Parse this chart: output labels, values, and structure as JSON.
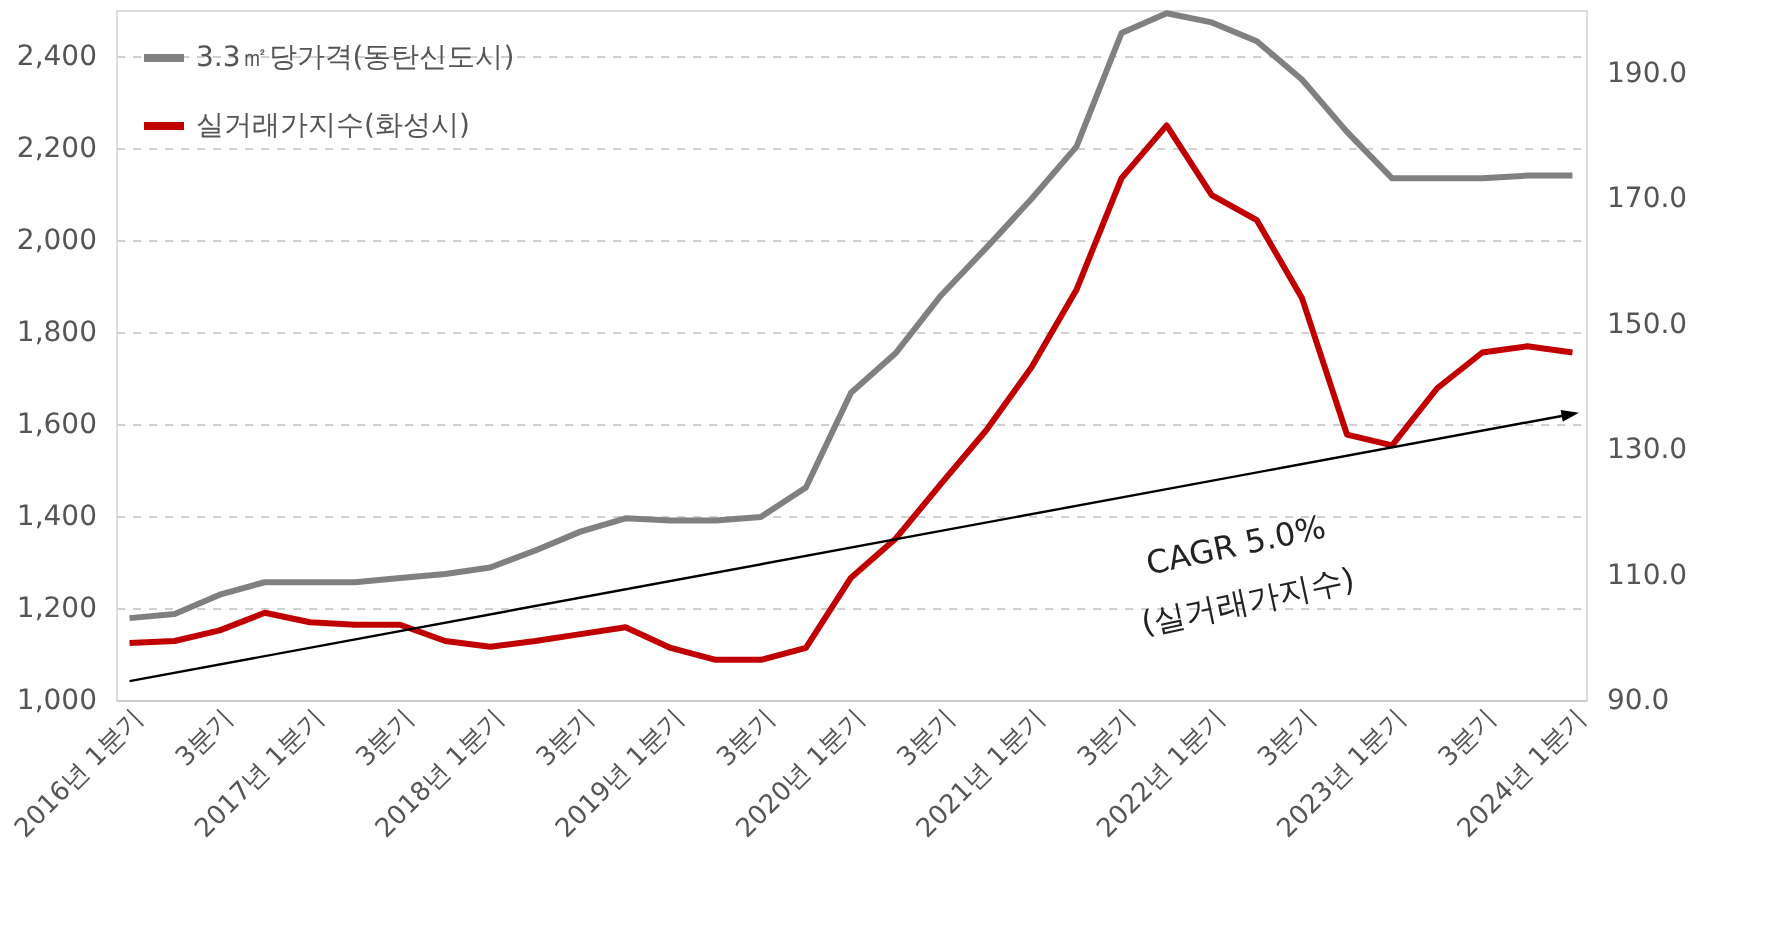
{
  "chart_data": {
    "type": "line",
    "categories": [
      "2016년 1분기",
      null,
      "3분기",
      null,
      "2017년 1분기",
      null,
      "3분기",
      null,
      "2018년 1분기",
      null,
      "3분기",
      null,
      "2019년 1분기",
      null,
      "3분기",
      null,
      "2020년 1분기",
      null,
      "3분기",
      null,
      "2021년 1분기",
      null,
      "3분기",
      null,
      "2022년 1분기",
      null,
      "3분기",
      null,
      "2023년 1분기",
      null,
      "3분기",
      null,
      "2024년 1분기"
    ],
    "series": [
      {
        "name": "3.3㎡당가격(동탄신도시)",
        "color": "#808080",
        "values": [
          1178,
          1187,
          1229,
          1256,
          1256,
          1256,
          1265,
          1274,
          1288,
          1325,
          1366,
          1395,
          1390,
          1390,
          1398,
          1462,
          1668,
          1755,
          1880,
          1983,
          2089,
          2203,
          2450,
          2493,
          2473,
          2432,
          2349,
          2235,
          2134,
          2134,
          2134,
          2140,
          2140
        ]
      },
      {
        "name": "실거래가지수(화성시)",
        "color": "#c00000",
        "axis": "y2",
        "values": [
          99.1,
          99.4,
          101.1,
          103.9,
          102.4,
          102.0,
          102.0,
          99.4,
          98.5,
          99.4,
          100.5,
          101.6,
          98.3,
          96.4,
          96.4,
          98.3,
          109.5,
          115.8,
          124.5,
          133.0,
          143.0,
          155.4,
          173.2,
          181.6,
          170.5,
          166.5,
          154.1,
          132.3,
          130.6,
          139.7,
          145.4,
          146.4,
          145.4
        ]
      },
      {
        "type": "line",
        "color": "#000000",
        "axis": "y2",
        "values": [
          93.0,
          null,
          null,
          null,
          null,
          null,
          null,
          null,
          null,
          null,
          null,
          null,
          null,
          null,
          null,
          null,
          null,
          null,
          null,
          null,
          null,
          null,
          null,
          null,
          null,
          null,
          null,
          null,
          null,
          null,
          null,
          null,
          135.6
        ]
      }
    ],
    "ylim": [
      1000,
      2500
    ],
    "yticks": [
      {
        "value": 1000,
        "label": "1,000"
      },
      {
        "value": 1200,
        "label": "1,200"
      },
      {
        "value": 1400,
        "label": "1,400"
      },
      {
        "value": 1600,
        "label": "1,600"
      },
      {
        "value": 1800,
        "label": "1,800"
      },
      {
        "value": 2000,
        "label": "2,000"
      },
      {
        "value": 2200,
        "label": "2,200"
      },
      {
        "value": 2400,
        "label": "2,400"
      }
    ],
    "y2lim": [
      90,
      200
    ],
    "y2ticks": [
      {
        "value": 90,
        "label": "90.0"
      },
      {
        "value": 110,
        "label": "110.0"
      },
      {
        "value": 130,
        "label": "130.0"
      },
      {
        "value": 150,
        "label": "150.0"
      },
      {
        "value": 170,
        "label": "170.0"
      },
      {
        "value": 190,
        "label": "190.0"
      }
    ],
    "annotations": [
      "CAGR 5.0%",
      "(실거래가지수)"
    ],
    "grid": "y",
    "legend": "top left",
    "line_style": "solid"
  }
}
